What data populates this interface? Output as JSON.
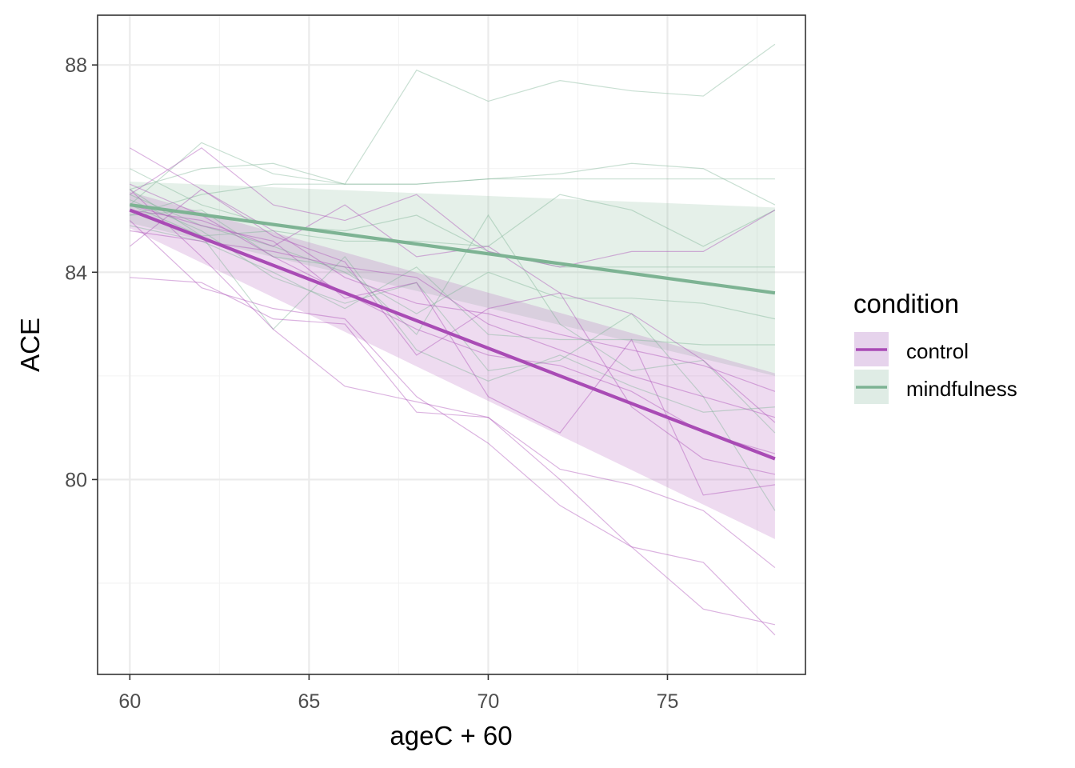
{
  "chart_data": {
    "type": "line",
    "title": "",
    "xlabel": "ageC + 60",
    "ylabel": "ACE",
    "xlim": [
      59.1,
      78.85
    ],
    "ylim": [
      76.24,
      88.96
    ],
    "x_ticks": [
      60,
      65,
      70,
      75
    ],
    "x_tick_labels": [
      "60",
      "65",
      "70",
      "75"
    ],
    "y_ticks": [
      80,
      84,
      88
    ],
    "y_tick_labels": [
      "80",
      "84",
      "88"
    ],
    "grid": true,
    "legend": {
      "title": "condition",
      "placement": "right",
      "entries": [
        {
          "label": "control",
          "line_color": "#a94bb5",
          "fill_color": "#e6d3ec"
        },
        {
          "label": "mindfulness",
          "line_color": "#7db393",
          "fill_color": "#dfece5"
        }
      ]
    },
    "series": [
      {
        "name": "control",
        "color": "#a94bb5",
        "fit": {
          "x": [
            60,
            78
          ],
          "y": [
            85.2,
            80.4
          ]
        },
        "ribbon": {
          "x": [
            60,
            78
          ],
          "lower": [
            84.85,
            78.85
          ],
          "upper": [
            85.55,
            82.05
          ]
        },
        "individual": [
          {
            "x": [
              60,
              62,
              64,
              66,
              68,
              70,
              72,
              74,
              76,
              78
            ],
            "y": [
              86.4,
              85.6,
              84.8,
              83.9,
              83.4,
              83.2,
              82.8,
              82.5,
              82.2,
              81.7
            ]
          },
          {
            "x": [
              60,
              62,
              64,
              66,
              68,
              70,
              72,
              74,
              76,
              78
            ],
            "y": [
              85.5,
              86.4,
              85.3,
              85.0,
              85.5,
              84.4,
              84.1,
              84.4,
              84.4,
              85.2
            ]
          },
          {
            "x": [
              60,
              62,
              64,
              66,
              68,
              70,
              72,
              74,
              76,
              78
            ],
            "y": [
              85.2,
              85.0,
              84.5,
              85.3,
              84.3,
              84.5,
              83.6,
              83.2,
              82.3,
              81.1
            ]
          },
          {
            "x": [
              60,
              62,
              64,
              66,
              68,
              70,
              72,
              74,
              76,
              78
            ],
            "y": [
              84.5,
              85.6,
              84.7,
              84.2,
              82.4,
              83.3,
              83.6,
              81.4,
              80.4,
              80.1
            ]
          },
          {
            "x": [
              60,
              62,
              64,
              66,
              68,
              70,
              72,
              74,
              76,
              78
            ],
            "y": [
              83.9,
              83.8,
              83.1,
              83.0,
              81.3,
              81.2,
              80.2,
              79.9,
              79.4,
              78.3
            ]
          },
          {
            "x": [
              60,
              62,
              64,
              66,
              68,
              70,
              72,
              74,
              76,
              78
            ],
            "y": [
              85.0,
              83.7,
              83.3,
              83.1,
              81.6,
              80.7,
              79.5,
              78.7,
              78.4,
              77.0
            ]
          },
          {
            "x": [
              60,
              62,
              64,
              66,
              68,
              70,
              72,
              74,
              76,
              78
            ],
            "y": [
              85.6,
              84.3,
              82.9,
              81.8,
              81.5,
              81.2,
              80.0,
              78.7,
              77.5,
              77.2
            ]
          },
          {
            "x": [
              60,
              62,
              64,
              66,
              68,
              70,
              72,
              74,
              76,
              78
            ],
            "y": [
              84.8,
              84.6,
              84.4,
              84.1,
              83.9,
              83.0,
              82.5,
              82.0,
              81.6,
              81.2
            ]
          },
          {
            "x": [
              60,
              62,
              64,
              66,
              68,
              70,
              72,
              74,
              76,
              78
            ],
            "y": [
              85.3,
              84.9,
              84.6,
              83.5,
              83.8,
              81.6,
              80.9,
              82.7,
              79.7,
              79.9
            ]
          },
          {
            "x": [
              60,
              62,
              64,
              66,
              68,
              70,
              72,
              74,
              76,
              78
            ],
            "y": [
              85.7,
              85.1,
              84.3,
              83.6,
              82.9,
              82.4,
              82.2,
              81.7,
              80.9,
              80.5
            ]
          }
        ]
      },
      {
        "name": "mindfulness",
        "color": "#7db393",
        "fit": {
          "x": [
            60,
            78
          ],
          "y": [
            85.3,
            83.6
          ]
        },
        "ribbon": {
          "x": [
            60,
            78
          ],
          "lower": [
            84.95,
            82.0
          ],
          "upper": [
            85.75,
            85.25
          ]
        },
        "individual": [
          {
            "x": [
              60,
              62,
              64,
              66,
              68,
              70,
              72,
              74,
              76,
              78
            ],
            "y": [
              85.6,
              86.0,
              86.1,
              85.7,
              87.9,
              87.3,
              87.7,
              87.5,
              87.4,
              88.4
            ]
          },
          {
            "x": [
              60,
              62,
              64,
              66,
              68,
              70,
              72,
              74,
              76,
              78
            ],
            "y": [
              85.3,
              86.5,
              85.9,
              85.7,
              85.7,
              85.8,
              85.8,
              85.8,
              85.8,
              85.8
            ]
          },
          {
            "x": [
              60,
              62,
              64,
              66,
              68,
              70,
              72,
              74,
              76,
              78
            ],
            "y": [
              85.1,
              85.5,
              85.7,
              85.7,
              85.7,
              85.8,
              85.9,
              86.1,
              86.0,
              85.3
            ]
          },
          {
            "x": [
              60,
              62,
              64,
              66,
              68,
              70,
              72,
              74,
              76,
              78
            ],
            "y": [
              85.3,
              84.7,
              84.8,
              84.6,
              84.6,
              84.5,
              85.5,
              85.2,
              84.5,
              85.2
            ]
          },
          {
            "x": [
              60,
              62,
              64,
              66,
              68,
              70,
              72,
              74,
              76,
              78
            ],
            "y": [
              86.0,
              85.3,
              84.9,
              84.8,
              85.1,
              84.4,
              84.1,
              84.1,
              84.1,
              84.1
            ]
          },
          {
            "x": [
              60,
              62,
              64,
              66,
              68,
              70,
              72,
              74,
              76,
              78
            ],
            "y": [
              85.5,
              84.9,
              84.5,
              84.0,
              83.2,
              84.0,
              83.5,
              83.5,
              83.4,
              83.1
            ]
          },
          {
            "x": [
              60,
              62,
              64,
              66,
              68,
              70,
              72,
              74,
              76,
              78
            ],
            "y": [
              84.9,
              84.6,
              84.0,
              83.3,
              84.1,
              82.8,
              82.7,
              82.7,
              82.6,
              82.6
            ]
          },
          {
            "x": [
              60,
              62,
              64,
              66,
              68,
              70,
              72,
              74,
              76,
              78
            ],
            "y": [
              85.4,
              84.8,
              83.9,
              83.4,
              83.8,
              82.1,
              82.3,
              83.2,
              81.6,
              79.4
            ]
          },
          {
            "x": [
              60,
              62,
              64,
              66,
              68,
              70,
              72,
              74,
              76,
              78
            ],
            "y": [
              85.6,
              84.7,
              82.9,
              84.3,
              82.5,
              81.9,
              82.4,
              81.8,
              81.3,
              81.4
            ]
          },
          {
            "x": [
              60,
              62,
              64,
              66,
              68,
              70,
              72,
              74,
              76,
              78
            ],
            "y": [
              85.1,
              85.2,
              84.3,
              84.1,
              82.8,
              85.1,
              83.0,
              82.1,
              82.3,
              80.9
            ]
          }
        ]
      }
    ]
  }
}
